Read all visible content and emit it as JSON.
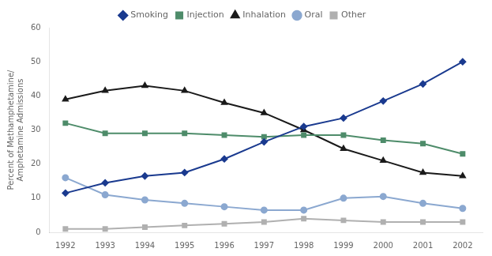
{
  "chart_data": {
    "type": "line",
    "x": [
      1992,
      1993,
      1994,
      1995,
      1996,
      1997,
      1998,
      1999,
      2000,
      2001,
      2002
    ],
    "series": [
      {
        "name": "Smoking",
        "color": "#1a3a8f",
        "marker": "diamond",
        "values": [
          11.5,
          14.5,
          16.5,
          17.5,
          21.5,
          26.5,
          31.0,
          33.5,
          38.5,
          43.5,
          50.0
        ]
      },
      {
        "name": "Injection",
        "color": "#4e8c6a",
        "marker": "square",
        "values": [
          32.0,
          29.0,
          29.0,
          29.0,
          28.5,
          28.0,
          28.5,
          28.5,
          27.0,
          26.0,
          23.0
        ]
      },
      {
        "name": "Inhalation",
        "color": "#1a1a1a",
        "marker": "triangle",
        "values": [
          39.0,
          41.5,
          43.0,
          41.5,
          38.0,
          35.0,
          30.0,
          24.5,
          21.0,
          17.5,
          16.5
        ]
      },
      {
        "name": "Oral",
        "color": "#8ba8d0",
        "marker": "circle",
        "values": [
          16.0,
          11.0,
          9.5,
          8.5,
          7.5,
          6.5,
          6.5,
          10.0,
          10.5,
          8.5,
          7.0
        ]
      },
      {
        "name": "Other",
        "color": "#b0b0b0",
        "marker": "square",
        "values": [
          1.0,
          1.0,
          1.5,
          2.0,
          2.5,
          3.0,
          4.0,
          3.5,
          3.0,
          3.0,
          3.0
        ]
      }
    ],
    "ylabel": "Percent of Methamphetamine/\nAmphetamine Admissions",
    "xlim": [
      1991.6,
      2002.5
    ],
    "xticks": [
      1992,
      1993,
      1994,
      1995,
      1996,
      1997,
      1998,
      1999,
      2000,
      2001,
      2002
    ],
    "ylim": [
      0,
      60
    ],
    "yticks": [
      0,
      10,
      20,
      30,
      40,
      50,
      60
    ],
    "grid": false,
    "legend": "top"
  }
}
